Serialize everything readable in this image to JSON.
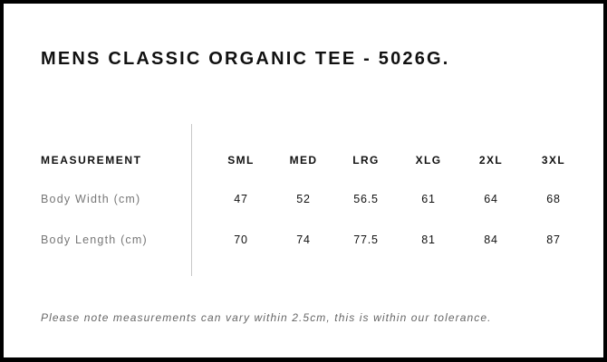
{
  "title": "MENS CLASSIC ORGANIC TEE - 5026G.",
  "table": {
    "header": {
      "label": "MEASUREMENT",
      "sizes": [
        "SML",
        "MED",
        "LRG",
        "XLG",
        "2XL",
        "3XL"
      ]
    },
    "rows": [
      {
        "label": "Body Width (cm)",
        "values": [
          "47",
          "52",
          "56.5",
          "61",
          "64",
          "68"
        ]
      },
      {
        "label": "Body Length (cm)",
        "values": [
          "70",
          "74",
          "77.5",
          "81",
          "84",
          "87"
        ]
      }
    ]
  },
  "note": "Please note measurements can vary within 2.5cm, this is within our tolerance."
}
